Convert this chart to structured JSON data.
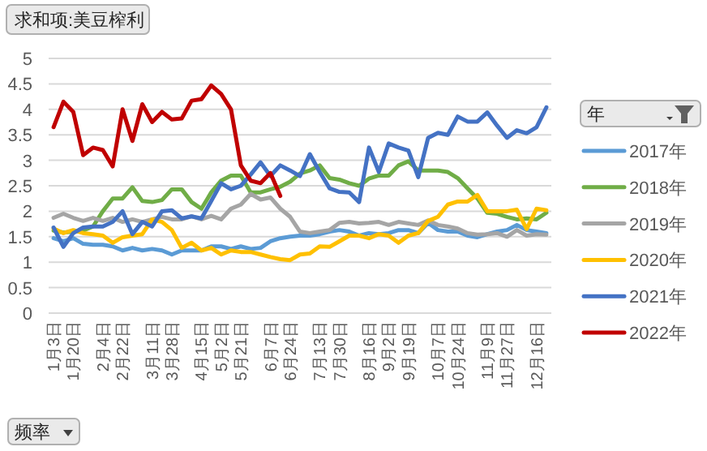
{
  "chart_data": {
    "type": "line",
    "title": "求和项:美豆榨利",
    "xlabel": "频率",
    "legend_title": "年",
    "legend": "right",
    "grid": "y",
    "ylim": [
      0,
      5
    ],
    "yticks": [
      0,
      0.5,
      1,
      1.5,
      2,
      2.5,
      3,
      3.5,
      4,
      4.5,
      5
    ],
    "categories": [
      "1月3日",
      null,
      "1月20日",
      null,
      null,
      "2月4日",
      null,
      "2月22日",
      null,
      null,
      "3月11日",
      null,
      "3月28日",
      null,
      null,
      "4月15日",
      null,
      "5月2日",
      null,
      "5月21日",
      null,
      null,
      "6月7日",
      null,
      "6月24日",
      null,
      null,
      "7月13日",
      null,
      "7月30日",
      null,
      null,
      "8月16日",
      null,
      "9月2日",
      null,
      "9月19日",
      null,
      null,
      "10月7日",
      null,
      "10月24日",
      null,
      null,
      "11月9日",
      null,
      "11月27日",
      null,
      null,
      "12月16日",
      null
    ],
    "series": [
      {
        "name": "2017年",
        "color": "#5b9bd5",
        "values": [
          1.47,
          1.41,
          1.47,
          1.36,
          1.34,
          1.34,
          1.31,
          1.23,
          1.28,
          1.23,
          1.26,
          1.23,
          1.15,
          1.23,
          1.23,
          1.23,
          1.31,
          1.31,
          1.26,
          1.31,
          1.26,
          1.28,
          1.41,
          1.47,
          1.5,
          1.52,
          1.52,
          1.55,
          1.6,
          1.63,
          1.6,
          1.52,
          1.57,
          1.55,
          1.57,
          1.63,
          1.63,
          1.57,
          1.77,
          1.63,
          1.6,
          1.6,
          1.52,
          1.49,
          1.55,
          1.6,
          1.63,
          1.73,
          1.63,
          1.6,
          1.57
        ]
      },
      {
        "name": "2018年",
        "color": "#70ad47",
        "values": [
          1.62,
          1.58,
          1.6,
          1.62,
          1.7,
          2.0,
          2.25,
          2.25,
          2.47,
          2.2,
          2.18,
          2.22,
          2.43,
          2.43,
          2.18,
          2.05,
          2.37,
          2.6,
          2.7,
          2.7,
          2.37,
          2.37,
          2.43,
          2.48,
          2.58,
          2.74,
          2.8,
          2.9,
          2.65,
          2.62,
          2.55,
          2.5,
          2.64,
          2.7,
          2.7,
          2.9,
          2.98,
          2.8,
          2.8,
          2.8,
          2.77,
          2.65,
          2.45,
          2.25,
          1.97,
          1.95,
          1.89,
          1.84,
          1.86,
          1.84,
          1.97
        ]
      },
      {
        "name": "2019年",
        "color": "#a5a5a5",
        "values": [
          1.87,
          1.95,
          1.87,
          1.81,
          1.87,
          1.81,
          1.87,
          1.79,
          1.84,
          1.79,
          1.84,
          1.89,
          1.84,
          1.84,
          1.9,
          1.84,
          1.91,
          1.84,
          2.05,
          2.13,
          2.34,
          2.23,
          2.27,
          2.05,
          1.89,
          1.6,
          1.57,
          1.6,
          1.63,
          1.77,
          1.79,
          1.76,
          1.77,
          1.79,
          1.73,
          1.79,
          1.76,
          1.73,
          1.82,
          1.73,
          1.7,
          1.66,
          1.57,
          1.54,
          1.55,
          1.57,
          1.5,
          1.63,
          1.52,
          1.55,
          1.54
        ]
      },
      {
        "name": "2020年",
        "color": "#ffc000",
        "values": [
          1.66,
          1.57,
          1.63,
          1.57,
          1.55,
          1.52,
          1.38,
          1.49,
          1.52,
          1.55,
          1.84,
          1.79,
          1.63,
          1.28,
          1.38,
          1.23,
          1.28,
          1.15,
          1.23,
          1.2,
          1.2,
          1.15,
          1.1,
          1.06,
          1.04,
          1.15,
          1.17,
          1.31,
          1.3,
          1.41,
          1.52,
          1.52,
          1.47,
          1.55,
          1.52,
          1.38,
          1.52,
          1.57,
          1.81,
          1.89,
          2.13,
          2.19,
          2.19,
          2.32,
          2.0,
          2.0,
          2.0,
          2.03,
          1.65,
          2.05,
          2.02
        ]
      },
      {
        "name": "2021年",
        "color": "#4472c4",
        "values": [
          1.68,
          1.3,
          1.57,
          1.68,
          1.7,
          1.7,
          1.79,
          2.0,
          1.55,
          1.79,
          1.7,
          2.0,
          2.02,
          1.86,
          1.9,
          1.86,
          2.2,
          2.55,
          2.43,
          2.5,
          2.72,
          2.96,
          2.69,
          2.9,
          2.8,
          2.69,
          3.12,
          2.77,
          2.45,
          2.38,
          2.37,
          2.18,
          3.25,
          2.77,
          3.33,
          3.25,
          3.19,
          2.67,
          3.44,
          3.54,
          3.5,
          3.86,
          3.76,
          3.76,
          3.94,
          3.68,
          3.44,
          3.59,
          3.53,
          3.65,
          4.04
        ]
      },
      {
        "name": "2022年",
        "color": "#c00000",
        "values": [
          3.65,
          4.15,
          3.95,
          3.1,
          3.25,
          3.2,
          2.88,
          4.0,
          3.38,
          4.1,
          3.75,
          3.95,
          3.8,
          3.82,
          4.17,
          4.2,
          4.47,
          4.3,
          4.0,
          2.9,
          2.6,
          2.55,
          2.75,
          2.3,
          null,
          null,
          null,
          null,
          null,
          null,
          null,
          null,
          null,
          null,
          null,
          null,
          null,
          null,
          null,
          null,
          null,
          null,
          null,
          null,
          null,
          null,
          null,
          null,
          null,
          null,
          null
        ]
      }
    ]
  }
}
